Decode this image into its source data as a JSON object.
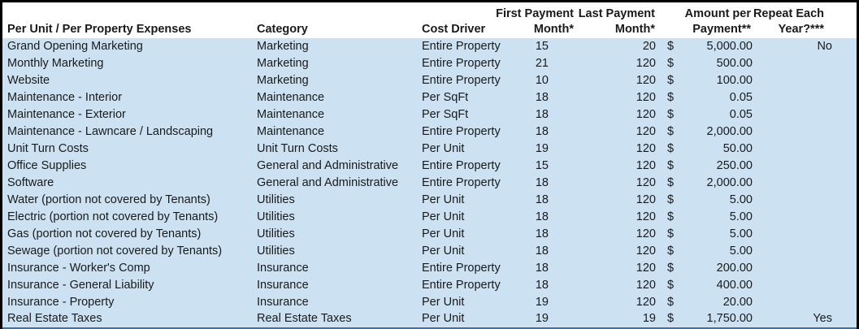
{
  "table": {
    "currency_symbol": "$",
    "columns": [
      {
        "id": "expense",
        "lines": [
          "Per Unit / Per Property Expenses"
        ]
      },
      {
        "id": "category",
        "lines": [
          "Category"
        ]
      },
      {
        "id": "cost_driver",
        "lines": [
          "Cost Driver"
        ]
      },
      {
        "id": "first_month",
        "lines": [
          "First Payment",
          "Month*"
        ]
      },
      {
        "id": "last_month",
        "lines": [
          "Last Payment",
          "Month*"
        ]
      },
      {
        "id": "amount",
        "lines": [
          "Amount per",
          "Payment**"
        ]
      },
      {
        "id": "repeat",
        "lines": [
          "Repeat Each",
          "Year?***"
        ]
      }
    ],
    "rows": [
      {
        "expense": "Grand Opening Marketing",
        "category": "Marketing",
        "cost_driver": "Entire Property",
        "first_month": "15",
        "last_month": "20",
        "amount": "5,000.00",
        "repeat": "No"
      },
      {
        "expense": "Monthly Marketing",
        "category": "Marketing",
        "cost_driver": "Entire Property",
        "first_month": "21",
        "last_month": "120",
        "amount": "500.00",
        "repeat": ""
      },
      {
        "expense": "Website",
        "category": "Marketing",
        "cost_driver": "Entire Property",
        "first_month": "10",
        "last_month": "120",
        "amount": "100.00",
        "repeat": ""
      },
      {
        "expense": "Maintenance - Interior",
        "category": "Maintenance",
        "cost_driver": "Per SqFt",
        "first_month": "18",
        "last_month": "120",
        "amount": "0.05",
        "repeat": ""
      },
      {
        "expense": "Maintenance - Exterior",
        "category": "Maintenance",
        "cost_driver": "Per SqFt",
        "first_month": "18",
        "last_month": "120",
        "amount": "0.05",
        "repeat": ""
      },
      {
        "expense": "Maintenance - Lawncare / Landscaping",
        "category": "Maintenance",
        "cost_driver": "Entire Property",
        "first_month": "18",
        "last_month": "120",
        "amount": "2,000.00",
        "repeat": ""
      },
      {
        "expense": "Unit Turn Costs",
        "category": "Unit Turn Costs",
        "cost_driver": "Per Unit",
        "first_month": "19",
        "last_month": "120",
        "amount": "50.00",
        "repeat": ""
      },
      {
        "expense": "Office Supplies",
        "category": "General and Administrative",
        "cost_driver": "Entire Property",
        "first_month": "15",
        "last_month": "120",
        "amount": "250.00",
        "repeat": ""
      },
      {
        "expense": "Software",
        "category": "General and Administrative",
        "cost_driver": "Entire Property",
        "first_month": "18",
        "last_month": "120",
        "amount": "2,000.00",
        "repeat": ""
      },
      {
        "expense": "Water (portion not covered by Tenants)",
        "category": "Utilities",
        "cost_driver": "Per Unit",
        "first_month": "18",
        "last_month": "120",
        "amount": "5.00",
        "repeat": ""
      },
      {
        "expense": "Electric (portion not covered by Tenants)",
        "category": "Utilities",
        "cost_driver": "Per Unit",
        "first_month": "18",
        "last_month": "120",
        "amount": "5.00",
        "repeat": ""
      },
      {
        "expense": "Gas (portion not covered by Tenants)",
        "category": "Utilities",
        "cost_driver": "Per Unit",
        "first_month": "18",
        "last_month": "120",
        "amount": "5.00",
        "repeat": ""
      },
      {
        "expense": "Sewage (portion not covered by Tenants)",
        "category": "Utilities",
        "cost_driver": "Per Unit",
        "first_month": "18",
        "last_month": "120",
        "amount": "5.00",
        "repeat": ""
      },
      {
        "expense": "Insurance - Worker's Comp",
        "category": "Insurance",
        "cost_driver": "Entire Property",
        "first_month": "18",
        "last_month": "120",
        "amount": "200.00",
        "repeat": ""
      },
      {
        "expense": "Insurance - General Liability",
        "category": "Insurance",
        "cost_driver": "Entire Property",
        "first_month": "18",
        "last_month": "120",
        "amount": "400.00",
        "repeat": ""
      },
      {
        "expense": "Insurance - Property",
        "category": "Insurance",
        "cost_driver": "Per Unit",
        "first_month": "19",
        "last_month": "120",
        "amount": "20.00",
        "repeat": ""
      },
      {
        "expense": "Real Estate Taxes",
        "category": "Real Estate Taxes",
        "cost_driver": "Per Unit",
        "first_month": "19",
        "last_month": "19",
        "amount": "1,750.00",
        "repeat": "Yes"
      }
    ]
  },
  "colors": {
    "row_fill": "#CCE2F2",
    "outer_border": "#000000",
    "bottom_rule": "#2F74B5",
    "header_background": "#FFFFFF",
    "text": "#1A1A1A"
  }
}
